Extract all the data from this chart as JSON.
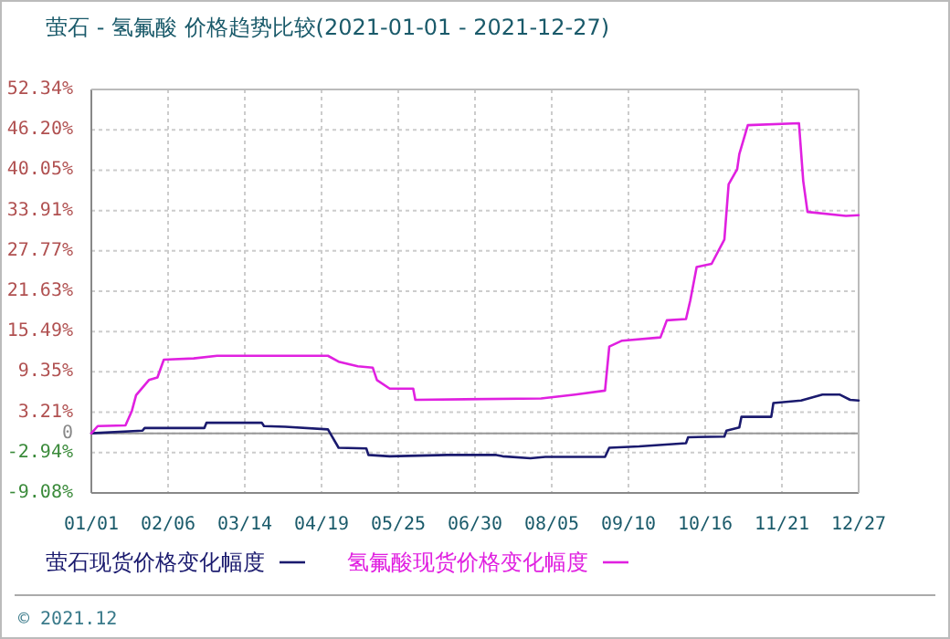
{
  "chart_data": {
    "type": "line",
    "title": "萤石 - 氢氟酸 价格趋势比较(2021-01-01 - 2021-12-27)",
    "xlim": [
      "2021-01-01",
      "2021-12-27"
    ],
    "xticks": [
      {
        "value": "2021-01-01",
        "label": "01/01"
      },
      {
        "value": "2021-02-06",
        "label": "02/06"
      },
      {
        "value": "2021-03-14",
        "label": "03/14"
      },
      {
        "value": "2021-04-19",
        "label": "04/19"
      },
      {
        "value": "2021-05-25",
        "label": "05/25"
      },
      {
        "value": "2021-06-30",
        "label": "06/30"
      },
      {
        "value": "2021-08-05",
        "label": "08/05"
      },
      {
        "value": "2021-09-10",
        "label": "09/10"
      },
      {
        "value": "2021-10-16",
        "label": "10/16"
      },
      {
        "value": "2021-11-21",
        "label": "11/21"
      },
      {
        "value": "2021-12-27",
        "label": "12/27"
      }
    ],
    "ylim": [
      -9.08,
      52.34
    ],
    "yticks": [
      {
        "value": -9.08,
        "label": "-9.08%"
      },
      {
        "value": -2.94,
        "label": "-2.94%"
      },
      0,
      {
        "value": 3.21,
        "label": "3.21%"
      },
      {
        "value": 9.35,
        "label": "9.35%"
      },
      {
        "value": 15.49,
        "label": "15.49%"
      },
      {
        "value": 21.63,
        "label": "21.63%"
      },
      {
        "value": 27.77,
        "label": "27.77%"
      },
      {
        "value": 33.91,
        "label": "33.91%"
      },
      {
        "value": 40.05,
        "label": "40.05%"
      },
      {
        "value": 46.2,
        "label": "46.20%"
      },
      {
        "value": 52.34,
        "label": "52.34%"
      }
    ],
    "grid": true,
    "legend": "bottom",
    "line_style": "solid",
    "marker": "none",
    "ref_lines": [
      {
        "axis": "y",
        "value": 0,
        "color": "#999999"
      }
    ],
    "annotations": [
      "© 2021.12"
    ],
    "series": [
      {
        "name": "萤石现货价格变化幅度",
        "color": "#1a1a6e",
        "x": [
          "2021-01-01",
          "2021-01-25",
          "2021-01-26",
          "2021-02-23",
          "2021-02-24",
          "2021-03-22",
          "2021-03-23",
          "2021-04-02",
          "2021-04-22",
          "2021-04-27",
          "2021-05-10",
          "2021-05-11",
          "2021-05-21",
          "2021-06-17",
          "2021-07-10",
          "2021-07-13",
          "2021-07-26",
          "2021-08-02",
          "2021-08-30",
          "2021-09-01",
          "2021-09-15",
          "2021-10-07",
          "2021-10-08",
          "2021-10-25",
          "2021-10-26",
          "2021-11-01",
          "2021-11-02",
          "2021-11-16",
          "2021-11-17",
          "2021-11-30",
          "2021-12-10",
          "2021-12-18",
          "2021-12-23",
          "2021-12-27"
        ],
        "values": [
          0,
          0.4,
          0.8,
          0.8,
          1.6,
          1.6,
          1.1,
          1.0,
          0.6,
          -2.2,
          -2.3,
          -3.3,
          -3.5,
          -3.3,
          -3.3,
          -3.5,
          -3.8,
          -3.6,
          -3.6,
          -2.2,
          -2.0,
          -1.5,
          -0.6,
          -0.5,
          0.4,
          0.9,
          2.5,
          2.5,
          4.6,
          5.0,
          5.9,
          5.9,
          5.1,
          5.0
        ]
      },
      {
        "name": "氢氟酸现货价格变化幅度",
        "color": "#e020e0",
        "x": [
          "2021-01-01",
          "2021-01-04",
          "2021-01-17",
          "2021-01-20",
          "2021-01-22",
          "2021-01-28",
          "2021-02-01",
          "2021-02-04",
          "2021-02-18",
          "2021-03-01",
          "2021-04-22",
          "2021-04-27",
          "2021-05-06",
          "2021-05-13",
          "2021-05-15",
          "2021-05-21",
          "2021-06-01",
          "2021-06-02",
          "2021-07-31",
          "2021-08-16",
          "2021-08-30",
          "2021-09-01",
          "2021-09-07",
          "2021-09-25",
          "2021-09-28",
          "2021-10-07",
          "2021-10-09",
          "2021-10-12",
          "2021-10-19",
          "2021-10-25",
          "2021-10-27",
          "2021-10-31",
          "2021-11-01",
          "2021-11-05",
          "2021-11-29",
          "2021-12-01",
          "2021-12-03",
          "2021-12-21",
          "2021-12-27"
        ],
        "values": [
          0,
          1.1,
          1.2,
          3.4,
          5.8,
          8.1,
          8.5,
          11.2,
          11.4,
          11.8,
          11.8,
          10.9,
          10.2,
          10.0,
          8.1,
          6.8,
          6.8,
          5.1,
          5.3,
          5.9,
          6.5,
          13.2,
          14.1,
          14.6,
          17.2,
          17.4,
          20.2,
          25.3,
          25.8,
          29.5,
          37.9,
          40.2,
          42.5,
          46.9,
          47.2,
          38.4,
          33.7,
          33.1,
          33.2
        ]
      }
    ]
  }
}
